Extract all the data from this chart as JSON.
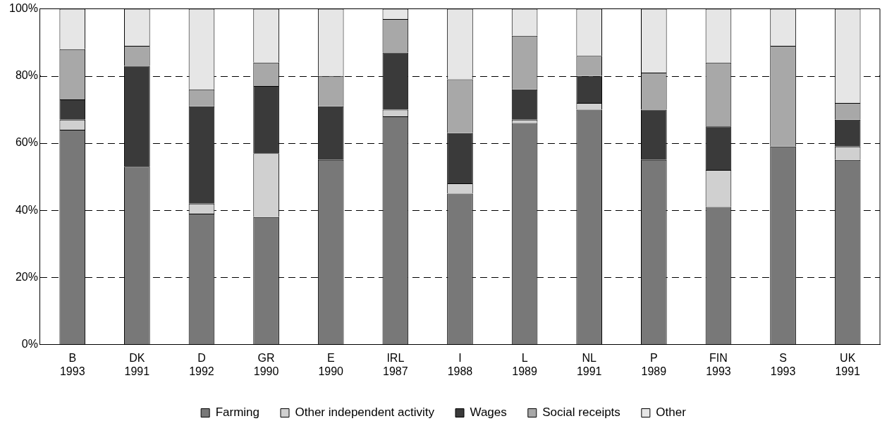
{
  "chart_data": {
    "type": "bar",
    "stacked": true,
    "categories": [
      "B\n1993",
      "DK\n1991",
      "D\n1992",
      "GR\n1990",
      "E\n1990",
      "IRL\n1987",
      "I\n1988",
      "L\n1989",
      "NL\n1991",
      "P\n1989",
      "FIN\n1993",
      "S\n1993",
      "UK\n1991"
    ],
    "series": [
      {
        "name": "Farming",
        "color": "#787878",
        "values": [
          64,
          53,
          39,
          38,
          55,
          68,
          45,
          66,
          70,
          55,
          41,
          59,
          55
        ]
      },
      {
        "name": "Other independent activity",
        "color": "#d0d0d0",
        "values": [
          3,
          0,
          3,
          19,
          0,
          2,
          3,
          1,
          2,
          0,
          11,
          0,
          4
        ]
      },
      {
        "name": "Wages",
        "color": "#3a3a3a",
        "values": [
          6,
          30,
          29,
          20,
          16,
          17,
          15,
          9,
          8,
          15,
          13,
          0,
          8
        ]
      },
      {
        "name": "Social receipts",
        "color": "#a8a8a8",
        "values": [
          15,
          6,
          5,
          7,
          9,
          10,
          16,
          16,
          6,
          11,
          19,
          30,
          5
        ]
      },
      {
        "name": "Other",
        "color": "#e6e6e6",
        "values": [
          12,
          11,
          24,
          16,
          20,
          3,
          21,
          8,
          14,
          19,
          16,
          11,
          28
        ]
      }
    ],
    "ylim": [
      0,
      100
    ],
    "yticks": [
      {
        "value": 0,
        "label": "0%"
      },
      {
        "value": 20,
        "label": "20%"
      },
      {
        "value": 40,
        "label": "40%"
      },
      {
        "value": 60,
        "label": "60%"
      },
      {
        "value": 80,
        "label": "80%"
      },
      {
        "value": 100,
        "label": "100%"
      }
    ],
    "grid": "y",
    "legend": "bottom"
  }
}
